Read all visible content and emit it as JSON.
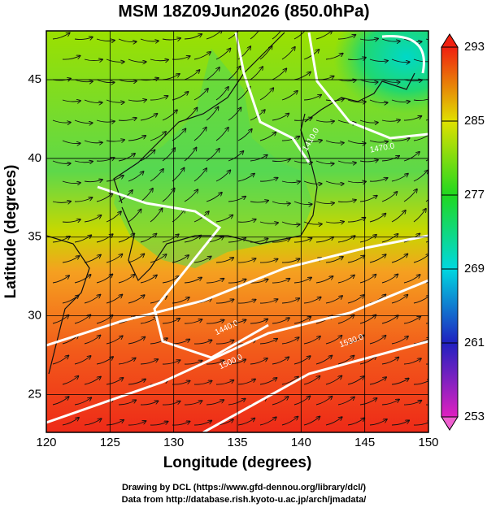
{
  "chart_data": {
    "type": "contour",
    "title": "MSM 18Z09Jun2026 (850.0hPa)",
    "xlabel": "Longitude (degrees)",
    "ylabel": "Latitude  (degrees)",
    "xlim": [
      120,
      150
    ],
    "ylim": [
      22.6,
      48.1
    ],
    "xticks": [
      120,
      125,
      130,
      135,
      140,
      145,
      150
    ],
    "yticks": [
      25,
      30,
      35,
      40,
      45
    ],
    "colorbar": {
      "lim": [
        253,
        293
      ],
      "ticks": [
        253,
        261,
        269,
        277,
        285,
        293
      ]
    },
    "contour_labels": [
      "1440.0",
      "1500.0",
      "1530.0",
      "1470.0",
      "1410.0"
    ],
    "footer": [
      "Drawing by DCL (https://www.gfd-dennou.org/library/dcl/)",
      "Data from http://database.rish.kyoto-u.ac.jp/arch/jmadata/"
    ]
  }
}
